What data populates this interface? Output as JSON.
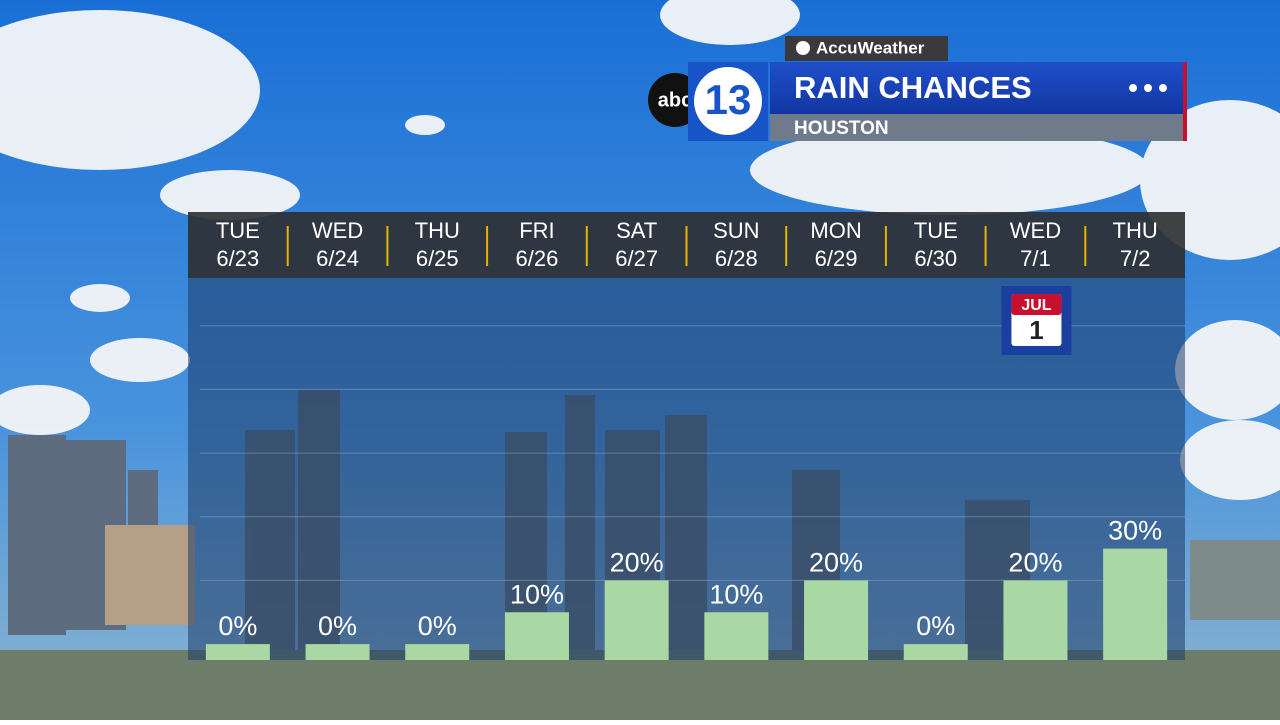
{
  "chart_data": {
    "type": "bar",
    "brand": "AccuWeather",
    "network": "abc",
    "channel": "13",
    "title": "RAIN CHANCES",
    "subtitle": "HOUSTON",
    "weekdays": [
      "TUE",
      "WED",
      "THU",
      "FRI",
      "SAT",
      "SUN",
      "MON",
      "TUE",
      "WED",
      "THU"
    ],
    "categories": [
      "6/23",
      "6/24",
      "6/25",
      "6/26",
      "6/27",
      "6/28",
      "6/29",
      "6/30",
      "7/1",
      "7/2"
    ],
    "values": [
      0,
      0,
      0,
      10,
      20,
      10,
      20,
      0,
      20,
      30
    ],
    "value_labels": [
      "0%",
      "0%",
      "0%",
      "10%",
      "20%",
      "10%",
      "20%",
      "0%",
      "20%",
      "30%"
    ],
    "color": "#a9d8a4",
    "ylim": [
      -5,
      115
    ],
    "yticks": [
      20,
      40,
      60,
      80,
      100
    ],
    "grid": true,
    "annotation": {
      "category_index": 8,
      "month": "JUL",
      "day": "1"
    }
  }
}
